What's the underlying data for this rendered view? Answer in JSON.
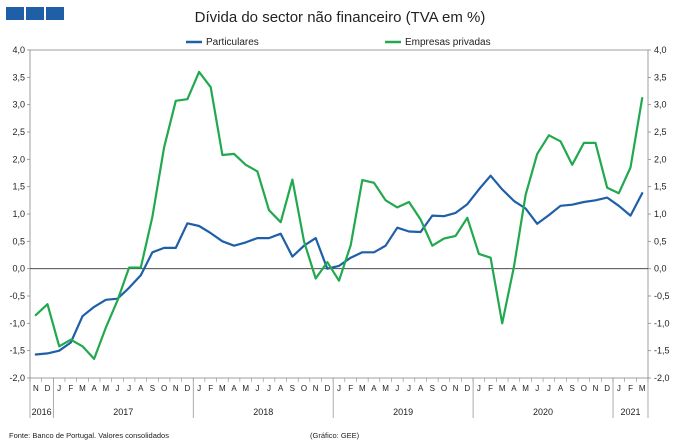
{
  "header": {
    "title": "Dívida do sector não financeiro (TVA em %)"
  },
  "logo_color": "#1F5FA8",
  "footer": {
    "source": "Fonte: Banco de Portugal. Valores consolidados",
    "credit": "(Gráfico: GEE)"
  },
  "chart_data": {
    "type": "line",
    "title": "Dívida do sector não financeiro (TVA em %)",
    "ylim": [
      -2.0,
      4.0
    ],
    "yticks": [
      "-2,0",
      "-1,5",
      "-1,0",
      "-0,5",
      "0,0",
      "0,5",
      "1,0",
      "1,5",
      "2,0",
      "2,5",
      "3,0",
      "3,5",
      "4,0"
    ],
    "legend_position": "top",
    "grid": false,
    "x": [
      "N",
      "D",
      "J",
      "F",
      "M",
      "A",
      "M",
      "J",
      "J",
      "A",
      "S",
      "O",
      "N",
      "D",
      "J",
      "F",
      "M",
      "A",
      "M",
      "J",
      "J",
      "A",
      "S",
      "O",
      "N",
      "D",
      "J",
      "F",
      "M",
      "A",
      "M",
      "J",
      "J",
      "A",
      "S",
      "O",
      "N",
      "D",
      "J",
      "F",
      "M",
      "A",
      "M",
      "J",
      "J",
      "A",
      "S",
      "O",
      "N",
      "D",
      "J",
      "F",
      "M"
    ],
    "year_groups": [
      {
        "label": "2016",
        "count": 2
      },
      {
        "label": "2017",
        "count": 12
      },
      {
        "label": "2018",
        "count": 12
      },
      {
        "label": "2019",
        "count": 12
      },
      {
        "label": "2020",
        "count": 12
      },
      {
        "label": "2021",
        "count": 3
      }
    ],
    "series": [
      {
        "name": "Particulares",
        "color": "#1F5FA8",
        "values": [
          -1.57,
          -1.55,
          -1.5,
          -1.35,
          -0.87,
          -0.7,
          -0.57,
          -0.55,
          -0.35,
          -0.12,
          0.3,
          0.38,
          0.38,
          0.83,
          0.78,
          0.65,
          0.5,
          0.42,
          0.48,
          0.56,
          0.56,
          0.64,
          0.22,
          0.42,
          0.56,
          0.0,
          0.05,
          0.2,
          0.3,
          0.3,
          0.42,
          0.75,
          0.68,
          0.67,
          0.97,
          0.96,
          1.02,
          1.18,
          1.45,
          1.7,
          1.45,
          1.24,
          1.1,
          0.82,
          0.98,
          1.15,
          1.17,
          1.22,
          1.25,
          1.3,
          1.15,
          0.97,
          1.38
        ]
      },
      {
        "name": "Empresas privadas",
        "color": "#22A84E",
        "values": [
          -0.85,
          -0.65,
          -1.42,
          -1.3,
          -1.42,
          -1.65,
          -1.08,
          -0.58,
          0.02,
          0.02,
          0.95,
          2.22,
          3.07,
          3.1,
          3.6,
          3.32,
          2.08,
          2.1,
          1.9,
          1.78,
          1.07,
          0.85,
          1.63,
          0.5,
          -0.18,
          0.12,
          -0.22,
          0.43,
          1.62,
          1.57,
          1.25,
          1.12,
          1.22,
          0.9,
          0.42,
          0.55,
          0.6,
          0.93,
          0.27,
          0.2,
          -1.0,
          0.03,
          1.35,
          2.1,
          2.44,
          2.33,
          1.9,
          2.3,
          2.3,
          1.48,
          1.38,
          1.85,
          3.12
        ]
      }
    ]
  }
}
